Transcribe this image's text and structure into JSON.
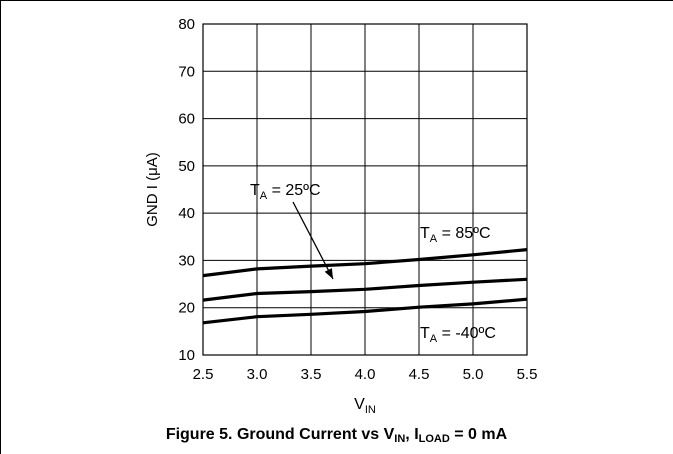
{
  "chart_data": {
    "type": "line",
    "x_axis": {
      "label_main": "V",
      "label_sub": "IN",
      "ticks": [
        "2.5",
        "3.0",
        "3.5",
        "4.0",
        "4.5",
        "5.0",
        "5.5"
      ],
      "range": [
        2.5,
        5.5
      ]
    },
    "y_axis": {
      "label": "GND I  (μA)",
      "ticks": [
        "10",
        "20",
        "30",
        "40",
        "50",
        "60",
        "70",
        "80"
      ],
      "range": [
        10,
        80
      ]
    },
    "grid": true,
    "series": [
      {
        "name": "TA = 85ºC",
        "x": [
          2.5,
          3.0,
          3.5,
          4.0,
          4.5,
          5.0,
          5.5
        ],
        "y": [
          26.8,
          28.2,
          28.8,
          29.3,
          30.2,
          31.2,
          32.3
        ]
      },
      {
        "name": "TA = 25ºC",
        "x": [
          2.5,
          3.0,
          3.5,
          4.0,
          4.5,
          5.0,
          5.5
        ],
        "y": [
          21.6,
          23.0,
          23.4,
          23.9,
          24.7,
          25.4,
          26.0
        ]
      },
      {
        "name": "TA = -40ºC",
        "x": [
          2.5,
          3.0,
          3.5,
          4.0,
          4.5,
          5.0,
          5.5
        ],
        "y": [
          16.8,
          18.1,
          18.6,
          19.2,
          20.1,
          20.8,
          21.8
        ]
      }
    ],
    "annotations": [
      {
        "id": "t85",
        "main": "T",
        "sub": "A",
        "rest": " = 85ºC"
      },
      {
        "id": "t25",
        "main": "T",
        "sub": "A",
        "rest": " = 25ºC"
      },
      {
        "id": "tm40",
        "main": "T",
        "sub": "A",
        "rest": " = -40ºC"
      }
    ]
  },
  "caption": {
    "prefix": "Figure 5. Ground Current vs V",
    "sub1": "IN",
    "middle": ", I",
    "sub2": "LOAD",
    "suffix": " = 0 mA"
  }
}
